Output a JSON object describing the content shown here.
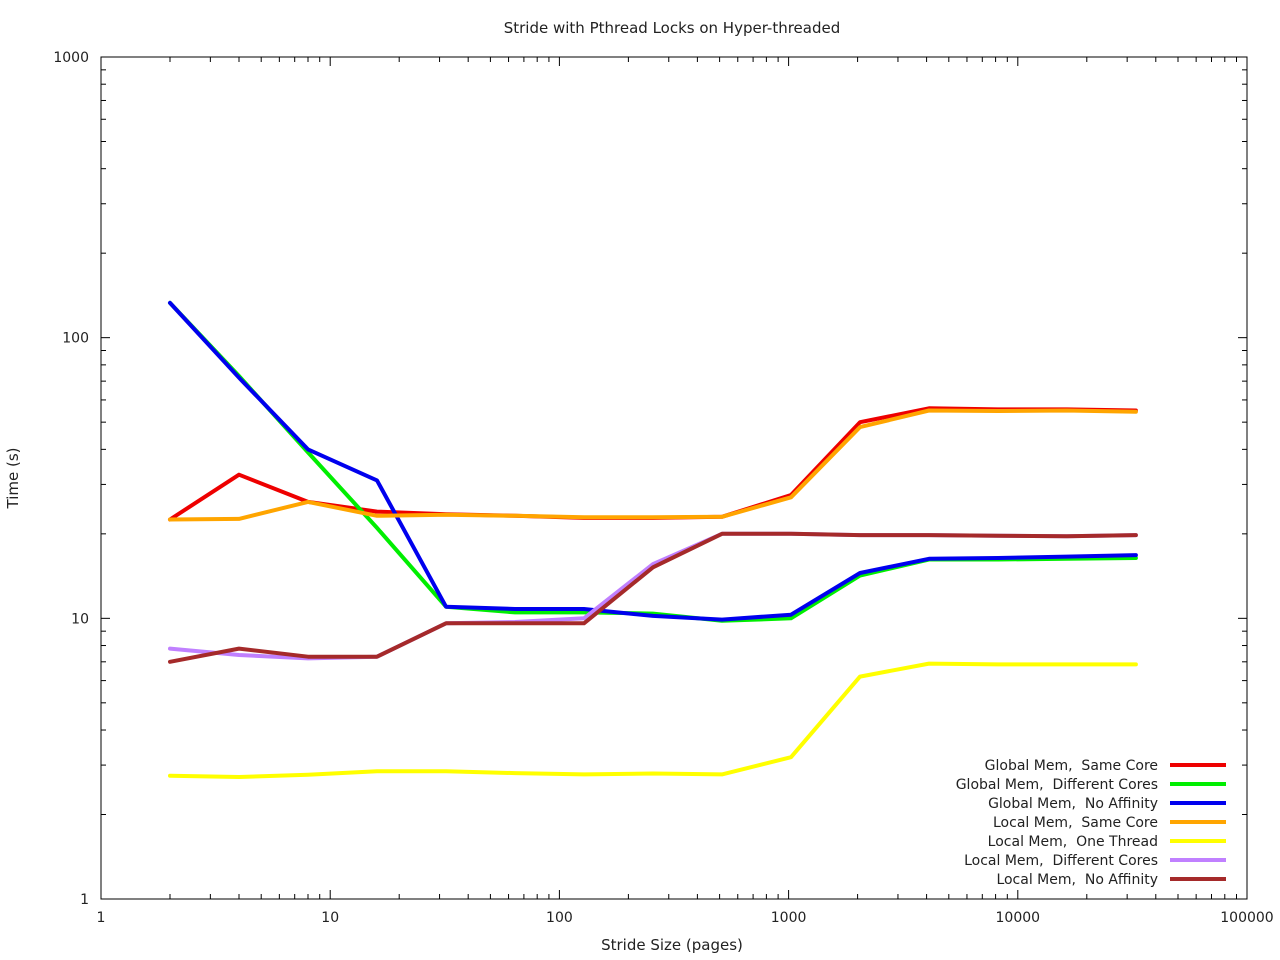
{
  "chart_data": {
    "type": "line",
    "title": "Stride with Pthread Locks on Hyper-threaded",
    "xlabel": "Stride Size (pages)",
    "ylabel": "Time (s)",
    "xscale": "log",
    "yscale": "log",
    "xlim": [
      1,
      100000
    ],
    "ylim": [
      1,
      1000
    ],
    "xticks": [
      {
        "value": 1,
        "label": "1"
      },
      {
        "value": 10,
        "label": "10"
      },
      {
        "value": 100,
        "label": "100"
      },
      {
        "value": 1000,
        "label": "1000"
      },
      {
        "value": 10000,
        "label": "10000"
      },
      {
        "value": 100000,
        "label": "100000"
      }
    ],
    "yticks": [
      {
        "value": 1,
        "label": "1"
      },
      {
        "value": 10,
        "label": "10"
      },
      {
        "value": 100,
        "label": "100"
      },
      {
        "value": 1000,
        "label": "1000"
      }
    ],
    "grid": false,
    "legend_position": "bottom-right",
    "x": [
      2,
      4,
      8,
      16,
      32,
      64,
      128,
      256,
      512,
      1024,
      2048,
      4096,
      8192,
      16384,
      32768
    ],
    "series": [
      {
        "name": "Global Mem,  Same Core",
        "color": "#ee0000",
        "values": [
          22.5,
          32.5,
          26,
          24,
          23.5,
          23.2,
          22.8,
          22.8,
          23,
          27.5,
          50,
          56,
          55.5,
          55.5,
          55
        ]
      },
      {
        "name": "Global Mem,  Different Cores",
        "color": "#00ee00",
        "values": [
          133,
          73,
          39,
          21,
          11,
          10.5,
          10.5,
          10.4,
          9.8,
          10,
          14.2,
          16.2,
          16.2,
          16.3,
          16.4
        ]
      },
      {
        "name": "Global Mem,  No Affinity",
        "color": "#0000ee",
        "values": [
          133,
          72,
          40,
          31,
          11,
          10.8,
          10.8,
          10.2,
          9.9,
          10.3,
          14.5,
          16.3,
          16.4,
          16.6,
          16.8
        ]
      },
      {
        "name": "Local Mem,  Same Core",
        "color": "#ffa500",
        "values": [
          22.5,
          22.6,
          26,
          23.2,
          23.4,
          23.2,
          22.9,
          22.9,
          23,
          27,
          48,
          55,
          54.8,
          55,
          54.5
        ]
      },
      {
        "name": "Local Mem,  One Thread",
        "color": "#ffff00",
        "values": [
          2.75,
          2.72,
          2.77,
          2.85,
          2.85,
          2.81,
          2.78,
          2.8,
          2.78,
          3.2,
          6.2,
          6.9,
          6.85,
          6.85,
          6.85
        ]
      },
      {
        "name": "Local Mem,  Different Cores",
        "color": "#c080ff",
        "values": [
          7.8,
          7.4,
          7.2,
          7.3,
          9.6,
          9.7,
          10,
          15.6,
          20,
          20,
          19.8,
          19.8,
          19.7,
          19.6,
          19.8
        ]
      },
      {
        "name": "Local Mem,  No Affinity",
        "color": "#a52a2a",
        "values": [
          7,
          7.8,
          7.3,
          7.3,
          9.6,
          9.6,
          9.6,
          15.2,
          20,
          20,
          19.8,
          19.8,
          19.7,
          19.6,
          19.8
        ]
      }
    ]
  }
}
